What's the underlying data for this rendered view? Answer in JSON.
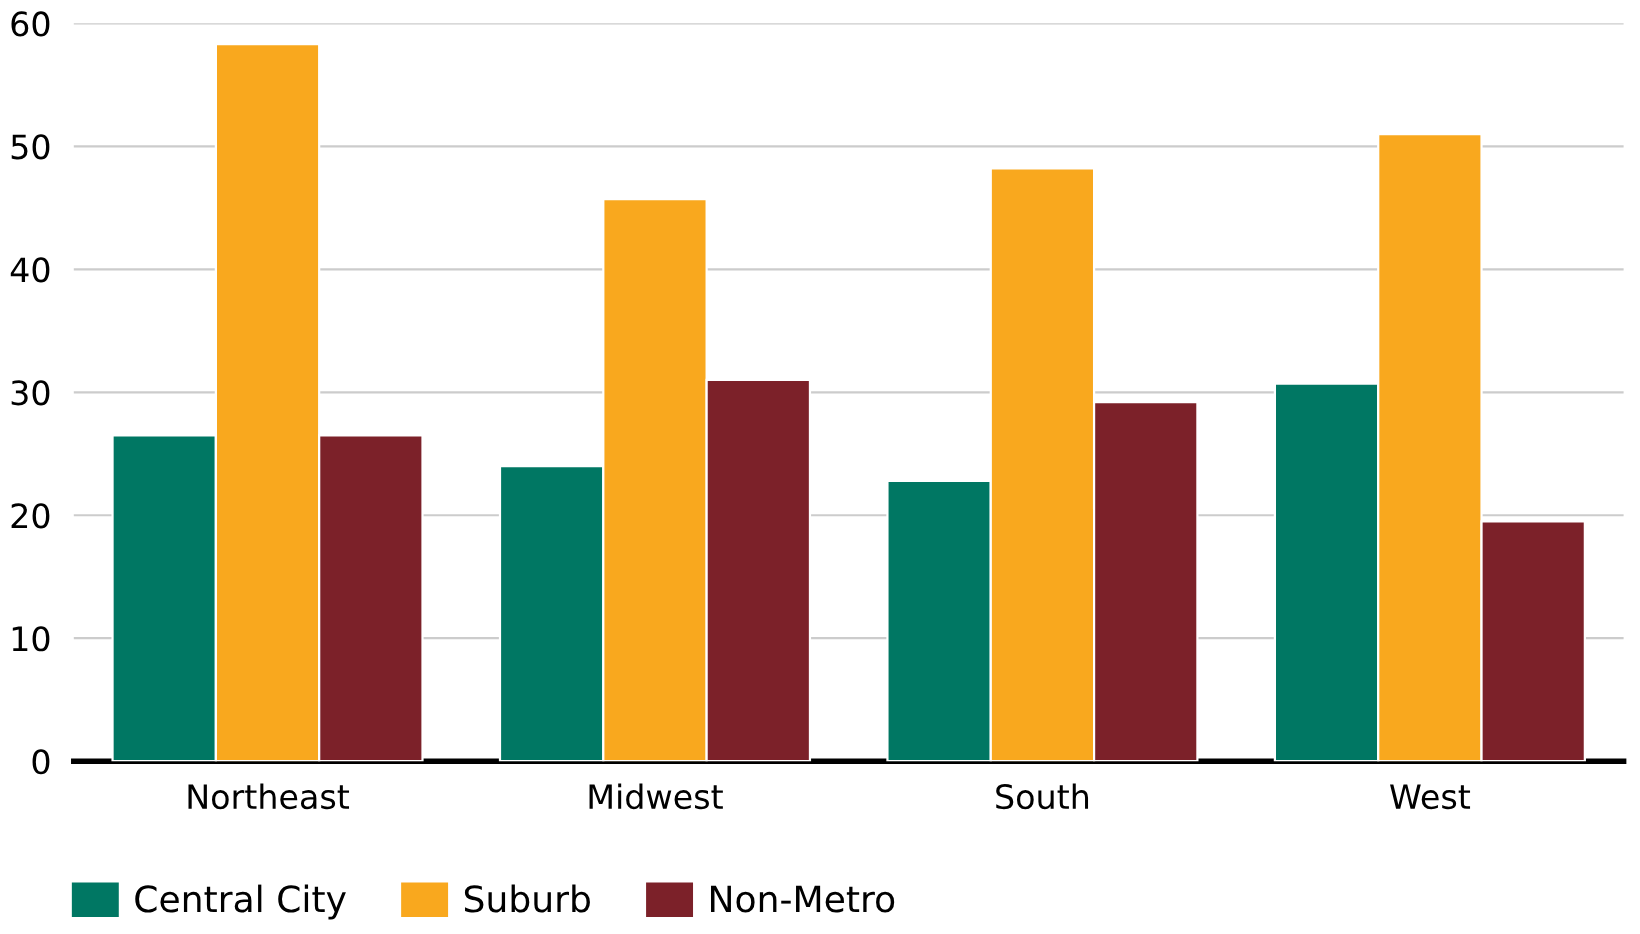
{
  "chart_data": {
    "type": "bar",
    "categories": [
      "Northeast",
      "Midwest",
      "South",
      "West"
    ],
    "series": [
      {
        "name": "Central City",
        "color": "#007763",
        "values": [
          26.5,
          24.0,
          22.8,
          30.7
        ]
      },
      {
        "name": "Suburb",
        "color": "#f9a81e",
        "values": [
          58.3,
          45.7,
          48.2,
          51.0
        ]
      },
      {
        "name": "Non-Metro",
        "color": "#7c2129",
        "values": [
          26.5,
          31.0,
          29.2,
          19.5
        ]
      }
    ],
    "ylim": [
      0,
      60
    ],
    "yticks": [
      0,
      10,
      20,
      30,
      40,
      50,
      60
    ],
    "grid": "y",
    "legend": "bottom left"
  }
}
